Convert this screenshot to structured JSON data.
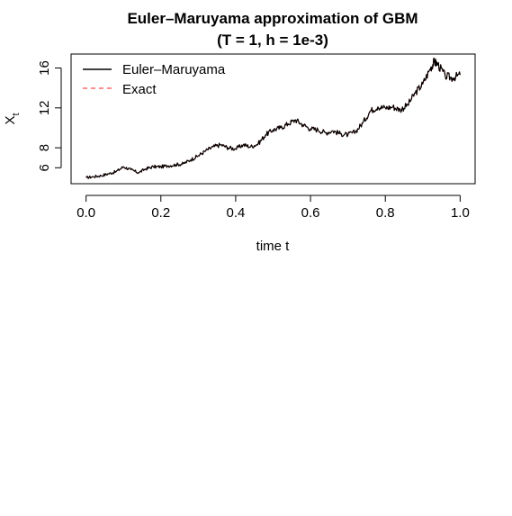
{
  "chart_data": {
    "type": "line",
    "title_line1": "Euler–Maruyama approximation of GBM",
    "title_line2": "(T = 1, h = 1e-3)",
    "xlabel": "time  t",
    "ylabel_main": "X",
    "ylabel_sub": "t",
    "xlim": [
      -0.04,
      1.04
    ],
    "ylim": [
      4.4,
      17.4
    ],
    "xticks": [
      0.0,
      0.2,
      0.4,
      0.6,
      0.8,
      1.0
    ],
    "xtick_labels": [
      "0.0",
      "0.2",
      "0.4",
      "0.6",
      "0.8",
      "1.0"
    ],
    "yticks": [
      6,
      8,
      12,
      16
    ],
    "ytick_labels": [
      "6",
      "8",
      "12",
      "16"
    ],
    "legend_position": "top-left",
    "series": [
      {
        "name": "Euler–Maruyama",
        "color": "#000000",
        "line_style": "solid",
        "x": [
          0.0,
          0.02,
          0.04,
          0.06,
          0.08,
          0.1,
          0.12,
          0.14,
          0.16,
          0.18,
          0.2,
          0.22,
          0.24,
          0.26,
          0.28,
          0.3,
          0.32,
          0.34,
          0.36,
          0.38,
          0.4,
          0.42,
          0.44,
          0.46,
          0.48,
          0.5,
          0.52,
          0.54,
          0.56,
          0.58,
          0.6,
          0.62,
          0.64,
          0.66,
          0.68,
          0.7,
          0.72,
          0.74,
          0.76,
          0.78,
          0.8,
          0.82,
          0.84,
          0.86,
          0.88,
          0.9,
          0.92,
          0.93,
          0.94,
          0.96,
          0.98,
          1.0
        ],
        "values": [
          5.0,
          5.1,
          5.2,
          5.4,
          5.6,
          6.1,
          5.8,
          5.5,
          5.9,
          6.1,
          6.1,
          6.2,
          6.3,
          6.4,
          6.8,
          7.2,
          7.7,
          8.1,
          8.3,
          8.0,
          7.9,
          8.3,
          8.1,
          8.4,
          9.3,
          9.8,
          10.0,
          10.4,
          10.8,
          10.3,
          9.9,
          9.8,
          9.5,
          9.7,
          9.4,
          9.3,
          9.6,
          10.5,
          11.7,
          12.1,
          12.0,
          12.1,
          11.8,
          12.3,
          13.5,
          14.4,
          15.9,
          16.6,
          16.4,
          15.2,
          15.0,
          15.3
        ]
      },
      {
        "name": "Exact",
        "color": "#ff6a6a",
        "line_style": "dashed",
        "x": [
          0.0,
          0.02,
          0.04,
          0.06,
          0.08,
          0.1,
          0.12,
          0.14,
          0.16,
          0.18,
          0.2,
          0.22,
          0.24,
          0.26,
          0.28,
          0.3,
          0.32,
          0.34,
          0.36,
          0.38,
          0.4,
          0.42,
          0.44,
          0.46,
          0.48,
          0.5,
          0.52,
          0.54,
          0.56,
          0.58,
          0.6,
          0.62,
          0.64,
          0.66,
          0.68,
          0.7,
          0.72,
          0.74,
          0.76,
          0.78,
          0.8,
          0.82,
          0.84,
          0.86,
          0.88,
          0.9,
          0.92,
          0.93,
          0.94,
          0.96,
          0.98,
          1.0
        ],
        "values": [
          5.0,
          5.1,
          5.2,
          5.4,
          5.6,
          6.1,
          5.8,
          5.5,
          5.9,
          6.1,
          6.1,
          6.2,
          6.3,
          6.4,
          6.8,
          7.2,
          7.7,
          8.1,
          8.3,
          8.0,
          7.9,
          8.3,
          8.1,
          8.4,
          9.3,
          9.8,
          10.0,
          10.4,
          10.8,
          10.3,
          9.9,
          9.8,
          9.5,
          9.7,
          9.4,
          9.3,
          9.6,
          10.5,
          11.7,
          12.1,
          12.0,
          12.1,
          11.8,
          12.3,
          13.5,
          14.4,
          15.9,
          16.6,
          16.4,
          15.2,
          15.0,
          15.3
        ]
      }
    ]
  }
}
